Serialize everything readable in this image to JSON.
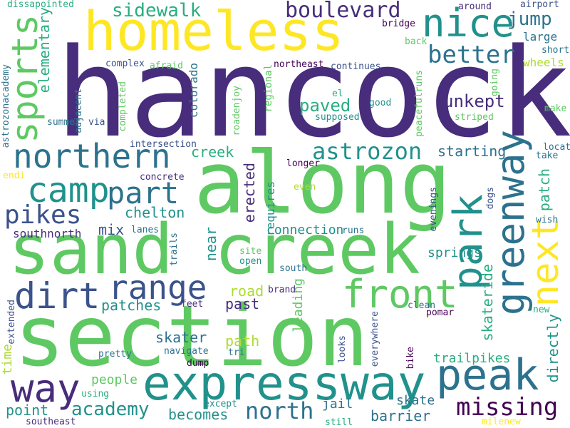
{
  "colors": {
    "background": "#ffffff",
    "palette": [
      "#440154",
      "#472d7b",
      "#3b528b",
      "#2c728e",
      "#21918c",
      "#28ae80",
      "#5ec962",
      "#addc30",
      "#fde725"
    ]
  },
  "words": [
    {
      "text": "hancock"
    },
    {
      "text": "along"
    },
    {
      "text": "section"
    },
    {
      "text": "sand creek"
    },
    {
      "text": "homeless"
    },
    {
      "text": "expressway"
    },
    {
      "text": "greenway"
    },
    {
      "text": "peak"
    },
    {
      "text": "park"
    },
    {
      "text": "front"
    },
    {
      "text": "next"
    },
    {
      "text": "nice"
    },
    {
      "text": "sports"
    },
    {
      "text": "way"
    },
    {
      "text": "northern"
    },
    {
      "text": "dirt"
    },
    {
      "text": "camp"
    },
    {
      "text": "range"
    },
    {
      "text": "part"
    },
    {
      "text": "pikes"
    },
    {
      "text": "better"
    },
    {
      "text": "boulevard"
    },
    {
      "text": "astrozon"
    },
    {
      "text": "missing"
    },
    {
      "text": "sidewalk"
    },
    {
      "text": "north"
    },
    {
      "text": "jump"
    },
    {
      "text": "academy"
    },
    {
      "text": "unkept"
    },
    {
      "text": "chelton"
    },
    {
      "text": "paved"
    },
    {
      "text": "elementary"
    },
    {
      "text": "creek"
    },
    {
      "text": "starting"
    },
    {
      "text": "erected"
    },
    {
      "text": "patches"
    },
    {
      "text": "mix"
    },
    {
      "text": "skater"
    },
    {
      "text": "skateride"
    },
    {
      "text": "directly"
    },
    {
      "text": "patch"
    },
    {
      "text": "road"
    },
    {
      "text": "past"
    },
    {
      "text": "path"
    },
    {
      "text": "near"
    },
    {
      "text": "point"
    },
    {
      "text": "becomes"
    },
    {
      "text": "barrier"
    },
    {
      "text": "people"
    },
    {
      "text": "jail"
    },
    {
      "text": "skate"
    },
    {
      "text": "connection"
    },
    {
      "text": "springs"
    },
    {
      "text": "leading"
    },
    {
      "text": "trailpikes"
    },
    {
      "text": "time"
    },
    {
      "text": "southnorth"
    },
    {
      "text": "requires"
    },
    {
      "text": "large"
    },
    {
      "text": "wheels"
    },
    {
      "text": "colorado"
    },
    {
      "text": "regional"
    },
    {
      "text": "astrozonacademy"
    },
    {
      "text": "dissapointed"
    },
    {
      "text": "around"
    },
    {
      "text": "airport"
    },
    {
      "text": "bridge"
    },
    {
      "text": "back"
    },
    {
      "text": "short"
    },
    {
      "text": "complex"
    },
    {
      "text": "afraid"
    },
    {
      "text": "northeast"
    },
    {
      "text": "continues"
    },
    {
      "text": "peacefulruns"
    },
    {
      "text": "going"
    },
    {
      "text": "make"
    },
    {
      "text": "el"
    },
    {
      "text": "good"
    },
    {
      "text": "supposed"
    },
    {
      "text": "striped"
    },
    {
      "text": "adjacent"
    },
    {
      "text": "completed"
    },
    {
      "text": "roadenjoy"
    },
    {
      "text": "summer"
    },
    {
      "text": "via"
    },
    {
      "text": "intersection"
    },
    {
      "text": "located"
    },
    {
      "text": "take"
    },
    {
      "text": "endi"
    },
    {
      "text": "concrete"
    },
    {
      "text": "longer"
    },
    {
      "text": "even"
    },
    {
      "text": "evenings"
    },
    {
      "text": "dogs"
    },
    {
      "text": "wish"
    },
    {
      "text": "lanes"
    },
    {
      "text": "trails"
    },
    {
      "text": "runs"
    },
    {
      "text": "site"
    },
    {
      "text": "open"
    },
    {
      "text": "south"
    },
    {
      "text": "brand"
    },
    {
      "text": "feet"
    },
    {
      "text": "extended"
    },
    {
      "text": "clean"
    },
    {
      "text": "everywhere"
    },
    {
      "text": "pomar"
    },
    {
      "text": "new"
    },
    {
      "text": "navigate"
    },
    {
      "text": "pretty"
    },
    {
      "text": "tri"
    },
    {
      "text": "looks"
    },
    {
      "text": "dump"
    },
    {
      "text": "bike"
    },
    {
      "text": "using"
    },
    {
      "text": "except"
    },
    {
      "text": "still"
    },
    {
      "text": "southeast"
    },
    {
      "text": "milenew"
    }
  ]
}
